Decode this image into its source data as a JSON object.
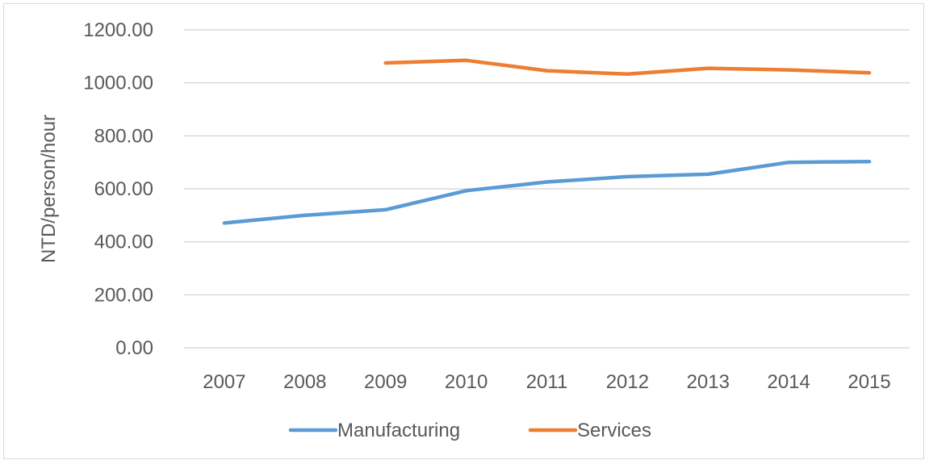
{
  "chart_data": {
    "type": "line",
    "title": "",
    "xlabel": "",
    "ylabel": "NTD/person/hour",
    "categories": [
      "2007",
      "2008",
      "2009",
      "2010",
      "2011",
      "2012",
      "2013",
      "2014",
      "2015"
    ],
    "ylim": [
      0,
      1200
    ],
    "yticks": [
      "0.00",
      "200.00",
      "400.00",
      "600.00",
      "800.00",
      "1000.00",
      "1200.00"
    ],
    "grid": true,
    "legend": "bottom",
    "series": [
      {
        "name": "Manufacturing",
        "color": "#5b9bd5",
        "values": [
          471,
          500,
          521,
          593,
          626,
          646,
          655,
          700,
          703
        ]
      },
      {
        "name": "Services",
        "color": "#ed7d31",
        "values": [
          null,
          null,
          1075,
          1085,
          1046,
          1033,
          1055,
          1049,
          1038
        ]
      }
    ]
  }
}
